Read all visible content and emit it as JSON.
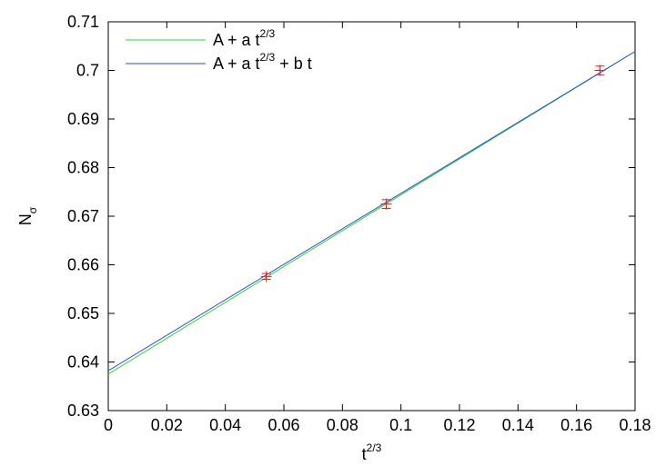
{
  "chart_data": {
    "type": "line",
    "xlabel": {
      "base": "t",
      "sup": "2/3"
    },
    "ylabel": {
      "base": "N",
      "sub": "σ"
    },
    "xlim": [
      0,
      0.18
    ],
    "ylim": [
      0.63,
      0.71
    ],
    "x_ticks": [
      0,
      0.02,
      0.04,
      0.06,
      0.08,
      0.1,
      0.12,
      0.14,
      0.16,
      0.18
    ],
    "x_tick_labels": [
      "0",
      "0.02",
      "0.04",
      "0.06",
      "0.08",
      "0.1",
      "0.12",
      "0.14",
      "0.16",
      "0.18"
    ],
    "y_ticks": [
      0.63,
      0.64,
      0.65,
      0.66,
      0.67,
      0.68,
      0.69,
      0.7,
      0.71
    ],
    "y_tick_labels": [
      "0.63",
      "0.64",
      "0.65",
      "0.66",
      "0.67",
      "0.68",
      "0.69",
      "0.7",
      "0.71"
    ],
    "grid": false,
    "legend_position": "top-left",
    "series": [
      {
        "name": {
          "base": "A + a t",
          "sup": "2/3",
          "rest": ""
        },
        "kind": "line",
        "color": "#22dd22",
        "x": [
          0,
          0.18
        ],
        "y": [
          0.6375,
          0.7039
        ]
      },
      {
        "name": {
          "base": "A + a t",
          "sup": "2/3",
          "rest": " + b t"
        },
        "kind": "line",
        "color": "#3344ee",
        "x": [
          0,
          0.18
        ],
        "y": [
          0.6382,
          0.7039
        ]
      },
      {
        "name": "",
        "kind": "points-errorbars",
        "color": "#dd2222",
        "points": [
          {
            "x": 0.054,
            "y": 0.6576,
            "err": 0.0006
          },
          {
            "x": 0.095,
            "y": 0.6725,
            "err": 0.0009
          },
          {
            "x": 0.168,
            "y": 0.7,
            "err": 0.0009
          }
        ]
      }
    ]
  }
}
